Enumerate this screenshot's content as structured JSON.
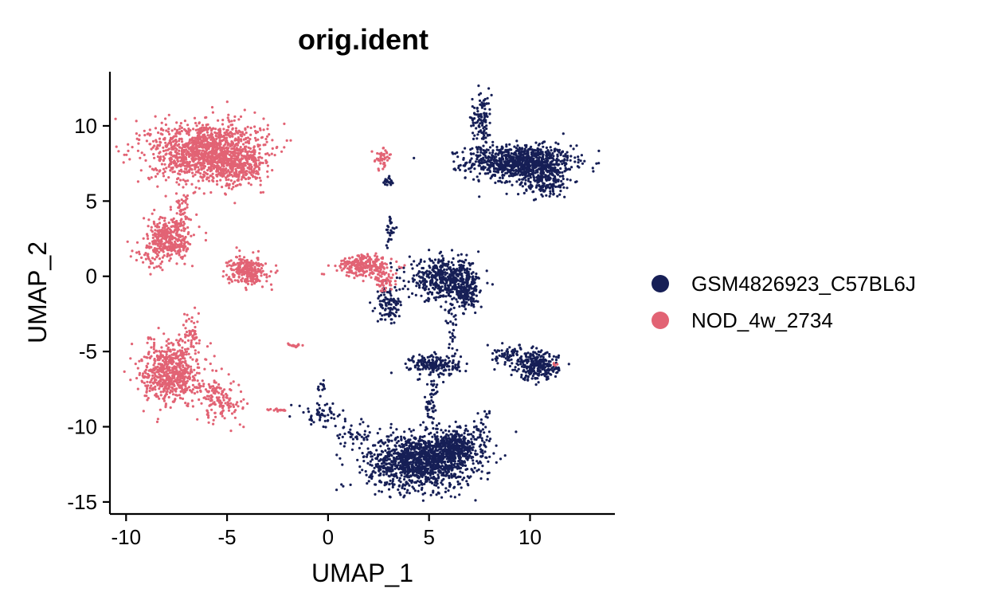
{
  "chart_data": {
    "type": "scatter",
    "title": "orig.ident",
    "xlabel": "UMAP_1",
    "ylabel": "UMAP_2",
    "xlim": [
      -10.8,
      14.2
    ],
    "ylim": [
      -15.8,
      13.6
    ],
    "xticks": [
      -10,
      -5,
      0,
      5,
      10
    ],
    "yticks": [
      -15,
      -10,
      -5,
      0,
      5,
      10
    ],
    "xtick_labels": [
      "-10",
      "-5",
      "0",
      "5",
      "10"
    ],
    "ytick_labels": [
      "-15",
      "-10",
      "-5",
      "0",
      "5",
      "10"
    ],
    "grid": false,
    "legend_position": "right",
    "series": [
      {
        "name": "GSM4826923_C57BL6J",
        "color": "#161F56",
        "clusters": [
          {
            "cx": 9.5,
            "cy": 7.6,
            "sx": 1.3,
            "sy": 0.55,
            "n": 900
          },
          {
            "cx": 10.7,
            "cy": 6.4,
            "sx": 0.7,
            "sy": 0.6,
            "n": 220
          },
          {
            "cx": 7.6,
            "cy": 10.5,
            "sx": 0.25,
            "sy": 1.0,
            "n": 120
          },
          {
            "cx": 4.6,
            "cy": -12.3,
            "sx": 1.3,
            "sy": 0.9,
            "n": 1300
          },
          {
            "cx": 6.3,
            "cy": -11.3,
            "sx": 0.6,
            "sy": 0.5,
            "n": 300
          },
          {
            "cx": 5.8,
            "cy": -0.2,
            "sx": 0.9,
            "sy": 0.65,
            "n": 500
          },
          {
            "cx": 6.8,
            "cy": -1.2,
            "sx": 0.3,
            "sy": 0.4,
            "n": 120
          },
          {
            "cx": 5.3,
            "cy": -5.9,
            "sx": 0.6,
            "sy": 0.35,
            "n": 200
          },
          {
            "cx": 10.4,
            "cy": -6.0,
            "sx": 0.5,
            "sy": 0.45,
            "n": 250
          },
          {
            "cx": 9.0,
            "cy": -5.3,
            "sx": 0.6,
            "sy": 0.35,
            "n": 80
          },
          {
            "cx": 3.0,
            "cy": -1.9,
            "sx": 0.3,
            "sy": 0.6,
            "n": 100
          },
          {
            "cx": 3.1,
            "cy": 3.0,
            "sx": 0.12,
            "sy": 0.5,
            "n": 30
          },
          {
            "cx": 3.0,
            "cy": 6.2,
            "sx": 0.12,
            "sy": 0.25,
            "n": 20
          },
          {
            "cx": 5.1,
            "cy": -8.3,
            "sx": 0.2,
            "sy": 0.8,
            "n": 50
          },
          {
            "cx": 6.1,
            "cy": -3.5,
            "sx": 0.15,
            "sy": 0.9,
            "n": 30
          },
          {
            "cx": -0.3,
            "cy": -9.2,
            "sx": 0.6,
            "sy": 0.4,
            "n": 60
          },
          {
            "cx": -0.3,
            "cy": -7.3,
            "sx": 0.1,
            "sy": 0.15,
            "n": 12
          },
          {
            "cx": 1.3,
            "cy": -10.5,
            "sx": 0.5,
            "sy": 0.4,
            "n": 40
          },
          {
            "cx": 7.7,
            "cy": -10.2,
            "sx": 0.3,
            "sy": 0.8,
            "n": 40
          }
        ]
      },
      {
        "name": "NOD_4w_2734",
        "color": "#E26374",
        "clusters": [
          {
            "cx": -6.0,
            "cy": 8.3,
            "sx": 1.4,
            "sy": 1.0,
            "n": 1300
          },
          {
            "cx": -4.5,
            "cy": 7.2,
            "sx": 0.6,
            "sy": 0.6,
            "n": 200
          },
          {
            "cx": -7.8,
            "cy": 2.5,
            "sx": 0.55,
            "sy": 0.75,
            "n": 350
          },
          {
            "cx": -4.0,
            "cy": 0.4,
            "sx": 0.45,
            "sy": 0.45,
            "n": 280
          },
          {
            "cx": -9.0,
            "cy": 1.3,
            "sx": 0.45,
            "sy": 0.45,
            "n": 40
          },
          {
            "cx": -7.2,
            "cy": 4.2,
            "sx": 0.15,
            "sy": 0.6,
            "n": 40
          },
          {
            "cx": -7.8,
            "cy": -6.4,
            "sx": 0.7,
            "sy": 1.0,
            "n": 650
          },
          {
            "cx": -6.8,
            "cy": -4.0,
            "sx": 0.25,
            "sy": 0.7,
            "n": 60
          },
          {
            "cx": -5.4,
            "cy": -8.0,
            "sx": 0.5,
            "sy": 0.8,
            "n": 120
          },
          {
            "cx": -4.8,
            "cy": -8.6,
            "sx": 0.4,
            "sy": 0.3,
            "n": 30
          },
          {
            "cx": 1.8,
            "cy": 0.7,
            "sx": 0.65,
            "sy": 0.35,
            "n": 250
          },
          {
            "cx": 2.8,
            "cy": -0.3,
            "sx": 0.3,
            "sy": 0.35,
            "n": 60
          },
          {
            "cx": 2.7,
            "cy": 7.9,
            "sx": 0.2,
            "sy": 0.35,
            "n": 45
          },
          {
            "cx": -1.7,
            "cy": -4.6,
            "sx": 0.2,
            "sy": 0.08,
            "n": 15
          },
          {
            "cx": -2.4,
            "cy": -8.9,
            "sx": 0.3,
            "sy": 0.08,
            "n": 15
          },
          {
            "cx": 11.2,
            "cy": -5.9,
            "sx": 0.1,
            "sy": 0.08,
            "n": 5
          }
        ]
      }
    ]
  }
}
